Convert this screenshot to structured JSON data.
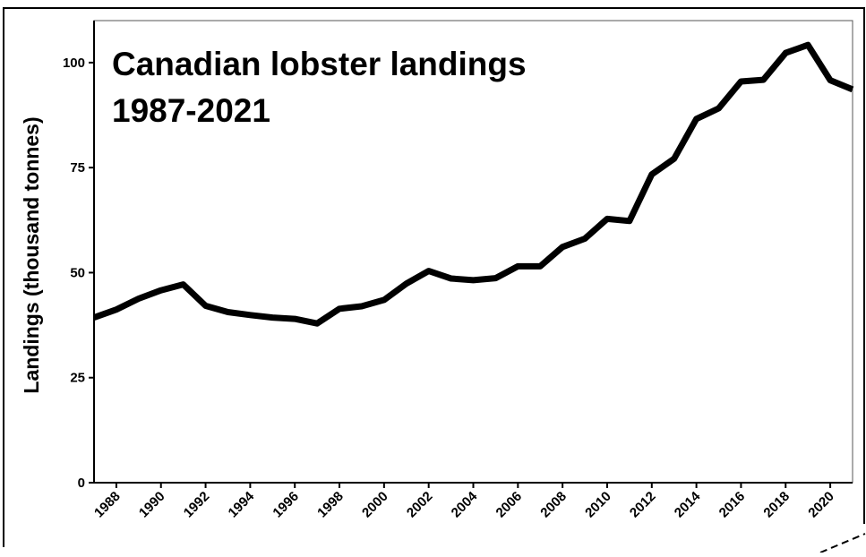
{
  "chart_data": {
    "type": "line",
    "title_lines": [
      "Canadian lobster landings",
      "1987-2021"
    ],
    "xlabel": "",
    "ylabel": "Landings (thousand tonnes)",
    "xlim": [
      1987,
      2021
    ],
    "ylim": [
      0,
      110
    ],
    "xticks": [
      "1988",
      "1990",
      "1992",
      "1994",
      "1996",
      "1998",
      "2000",
      "2002",
      "2004",
      "2006",
      "2008",
      "2010",
      "2012",
      "2014",
      "2016",
      "2018",
      "2020"
    ],
    "yticks": [
      "0",
      "25",
      "50",
      "75",
      "100"
    ],
    "grid": false,
    "legend": "none",
    "line_color": "#000000",
    "x": [
      1987,
      1988,
      1989,
      1990,
      1991,
      1992,
      1993,
      1994,
      1995,
      1996,
      1997,
      1998,
      1999,
      2000,
      2001,
      2002,
      2003,
      2004,
      2005,
      2006,
      2007,
      2008,
      2009,
      2010,
      2011,
      2012,
      2013,
      2014,
      2015,
      2016,
      2017,
      2018,
      2019,
      2020,
      2021
    ],
    "values": [
      39.3,
      41.2,
      43.8,
      45.8,
      47.2,
      42.1,
      40.6,
      39.9,
      39.3,
      39.0,
      37.9,
      41.4,
      42.0,
      43.5,
      47.4,
      50.4,
      48.6,
      48.2,
      48.7,
      51.5,
      51.5,
      56.1,
      58.1,
      62.8,
      62.3,
      73.4,
      77.1,
      86.6,
      89.1,
      95.5,
      95.9,
      102.3,
      104.2,
      95.8,
      93.6
    ]
  }
}
